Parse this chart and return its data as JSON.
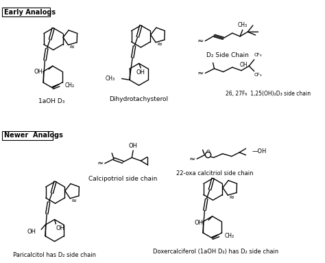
{
  "bg_color": "#ffffff",
  "early_analogs_label": "Early Analogs",
  "newer_analogs_label": "Newer  Analogs",
  "label_1aOH": "1aOH D₃",
  "label_dihydro": "Dihydrotachysterol",
  "label_D2": "D₂ Side Chain",
  "label_26_27": "26, 27F₆  1,25(OH)₂D₃ side chain",
  "label_calci": "Calcipotriol side chain",
  "label_22oxa": "22-oxa calcitriol side chain",
  "label_pari": "Paricalcitol has D₂ side chain",
  "label_doxer": "Doxercalciferol (1aOH D₂) has D₂ side chain",
  "figsize": [
    4.74,
    3.83
  ],
  "dpi": 100
}
